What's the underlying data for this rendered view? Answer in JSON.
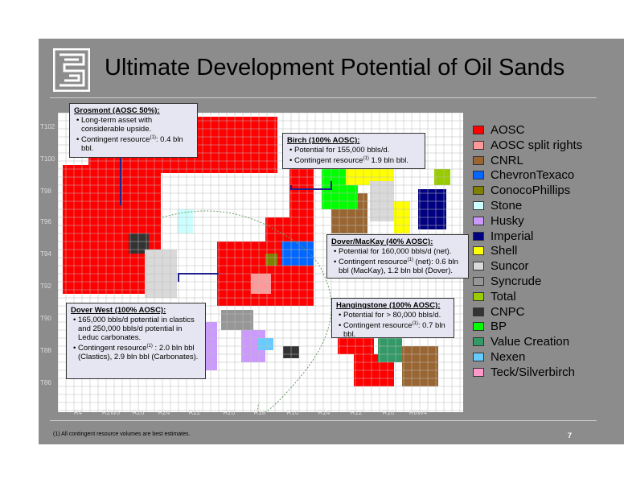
{
  "header": {
    "title": "Ultimate Development Potential of Oil Sands"
  },
  "map": {
    "townships": [
      "T102",
      "T100",
      "T98",
      "T96",
      "T94",
      "T92",
      "T90",
      "T88",
      "T86"
    ],
    "ranges": [
      "R4",
      "R2W5",
      "R26",
      "R24",
      "R22",
      "R20",
      "R18",
      "R16",
      "R14",
      "R12",
      "R10",
      "R8W4"
    ]
  },
  "callouts": [
    {
      "title": "Grosmont (AOSC 50%):",
      "bullets": [
        {
          "text": "Long-term asset with considerable upside."
        },
        {
          "text": "Contingent resource",
          "sup": "(1)",
          "rest": ":  0.4 bln bbl."
        }
      ]
    },
    {
      "title": "Birch (100% AOSC):",
      "bullets": [
        {
          "text": "Potential for 155,000 bbls/d."
        },
        {
          "text": "Contingent resource",
          "sup": "(1)",
          "rest": " 1.9 bln bbl."
        }
      ]
    },
    {
      "title": "Dover/MacKay (40% AOSC):",
      "bullets": [
        {
          "text": "Potential for 160,000 bbls/d (net)."
        },
        {
          "text": "Contingent resource",
          "sup": "(1)",
          "rest": " (net): 0.6 bln bbl (MacKay), 1.2 bln bbl (Dover)."
        }
      ]
    },
    {
      "title": "Dover West (100% AOSC):",
      "bullets": [
        {
          "text": "165,000 bbls/d potential in clastics and 250,000 bbls/d potential in Leduc carbonates."
        },
        {
          "text": "Contingent resource",
          "sup": "(1)",
          "rest": " : 2.0 bln bbl (Clastics), 2.9 bln bbl (Carbonates)."
        }
      ]
    },
    {
      "title": "Hangingstone (100% AOSC):",
      "bullets": [
        {
          "text": "Potential for > 80,000 bbls/d."
        },
        {
          "text": "Contingent resource",
          "sup": "(1)",
          "rest": ":  0.7 bln bbl."
        }
      ]
    }
  ],
  "legend": [
    {
      "label": "AOSC",
      "color": "#ff0000"
    },
    {
      "label": "AOSC split rights",
      "color": "#ff9999"
    },
    {
      "label": "CNRL",
      "color": "#996633"
    },
    {
      "label": "ChevronTexaco",
      "color": "#0066ff"
    },
    {
      "label": "ConocoPhillips",
      "color": "#808000"
    },
    {
      "label": "Stone",
      "color": "#ccffff"
    },
    {
      "label": "Husky",
      "color": "#cc99ff"
    },
    {
      "label": "Imperial",
      "color": "#000080"
    },
    {
      "label": "Shell",
      "color": "#ffff00"
    },
    {
      "label": "Suncor",
      "color": "#d9d9d9"
    },
    {
      "label": "Syncrude",
      "color": "#969696"
    },
    {
      "label": "Total",
      "color": "#99cc00"
    },
    {
      "label": "CNPC",
      "color": "#333333"
    },
    {
      "label": "BP",
      "color": "#00ff00"
    },
    {
      "label": "Value Creation",
      "color": "#339966"
    },
    {
      "label": "Nexen",
      "color": "#66ccff"
    },
    {
      "label": "Teck/Silverbirch",
      "color": "#ff99cc"
    }
  ],
  "footer": {
    "note": "(1)  All contingent resource volumes are best estimates.",
    "page": "7"
  }
}
